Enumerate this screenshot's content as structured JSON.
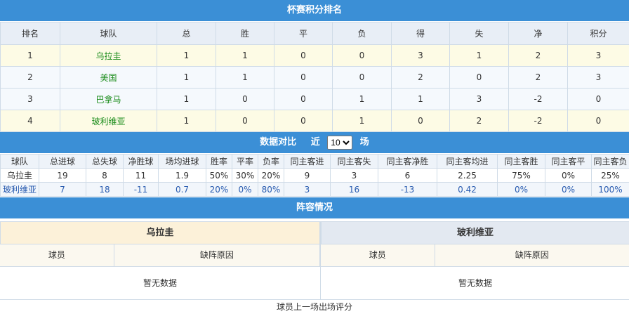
{
  "standings": {
    "title": "杯赛积分排名",
    "columns": [
      "排名",
      "球队",
      "总",
      "胜",
      "平",
      "负",
      "得",
      "失",
      "净",
      "积分"
    ],
    "rows": [
      [
        "1",
        "乌拉圭",
        "1",
        "1",
        "0",
        "0",
        "3",
        "1",
        "2",
        "3"
      ],
      [
        "2",
        "美国",
        "1",
        "1",
        "0",
        "0",
        "2",
        "0",
        "2",
        "3"
      ],
      [
        "3",
        "巴拿马",
        "1",
        "0",
        "0",
        "1",
        "1",
        "3",
        "-2",
        "0"
      ],
      [
        "4",
        "玻利维亚",
        "1",
        "0",
        "0",
        "1",
        "0",
        "2",
        "-2",
        "0"
      ]
    ]
  },
  "comparison": {
    "title": "数据对比",
    "recent_label": "近",
    "recent_value": "10",
    "recent_unit": "场",
    "columns": [
      "球队",
      "总进球",
      "总失球",
      "净胜球",
      "场均进球",
      "胜率",
      "平率",
      "负率",
      "同主客进",
      "同主客失",
      "同主客净胜",
      "同主客均进",
      "同主客胜",
      "同主客平",
      "同主客负"
    ],
    "rows": [
      [
        "乌拉圭",
        "19",
        "8",
        "11",
        "1.9",
        "50%",
        "30%",
        "20%",
        "9",
        "3",
        "6",
        "2.25",
        "75%",
        "0%",
        "25%"
      ],
      [
        "玻利维亚",
        "7",
        "18",
        "-11",
        "0.7",
        "20%",
        "0%",
        "80%",
        "3",
        "16",
        "-13",
        "0.42",
        "0%",
        "0%",
        "100%"
      ]
    ]
  },
  "lineup": {
    "title": "阵容情况",
    "teams": [
      {
        "name": "乌拉圭",
        "columns": [
          "球员",
          "缺阵原因"
        ],
        "empty": "暂无数据"
      },
      {
        "name": "玻利维亚",
        "columns": [
          "球员",
          "缺阵原因"
        ],
        "empty": "暂无数据"
      }
    ]
  },
  "footer_text": "球员上一场出场评分"
}
